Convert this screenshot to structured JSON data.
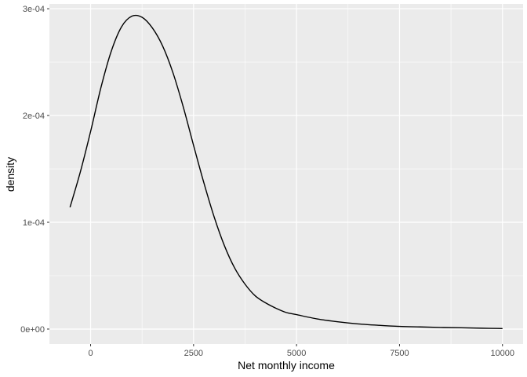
{
  "chart_data": {
    "type": "line",
    "xlabel": "Net monthly income",
    "ylabel": "density",
    "xlim": [
      -1000,
      10500
    ],
    "ylim": [
      -1.4e-05,
      0.0003045
    ],
    "x_ticks": [
      {
        "value": 0,
        "label": "0"
      },
      {
        "value": 2500,
        "label": "2500"
      },
      {
        "value": 5000,
        "label": "5000"
      },
      {
        "value": 7500,
        "label": "7500"
      },
      {
        "value": 10000,
        "label": "10000"
      }
    ],
    "y_ticks": [
      {
        "value": 0,
        "label": "0e+00"
      },
      {
        "value": 0.0001,
        "label": "1e-04"
      },
      {
        "value": 0.0002,
        "label": "2e-04"
      },
      {
        "value": 0.0003,
        "label": "3e-04"
      }
    ],
    "grid": true,
    "series": [
      {
        "color": "#000000",
        "x": [
          -500,
          -250,
          0,
          250,
          500,
          750,
          1000,
          1250,
          1500,
          1750,
          2000,
          2250,
          2500,
          2750,
          3000,
          3250,
          3500,
          3750,
          4000,
          4250,
          4500,
          4750,
          5000,
          5500,
          6000,
          6500,
          7000,
          7500,
          8000,
          8500,
          9000,
          9500,
          10000
        ],
        "y": [
          0.000114,
          0.000147,
          0.000185,
          0.000226,
          0.00026,
          0.000283,
          0.000293,
          0.000292,
          0.000282,
          0.000265,
          0.00024,
          0.000208,
          0.000172,
          0.000137,
          0.000105,
          7.8e-05,
          5.7e-05,
          4.2e-05,
          3.1e-05,
          2.45e-05,
          1.95e-05,
          1.55e-05,
          1.35e-05,
          9.5e-06,
          6.8e-06,
          4.8e-06,
          3.5e-06,
          2.5e-06,
          2e-06,
          1.5e-06,
          1.2e-06,
          8e-07,
          5e-07
        ]
      }
    ]
  }
}
